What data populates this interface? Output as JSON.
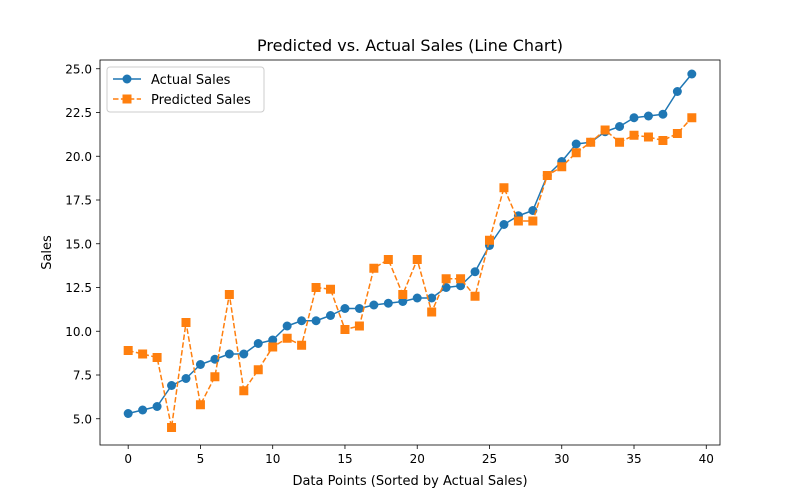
{
  "chart_data": {
    "type": "line",
    "title": "Predicted vs. Actual Sales (Line Chart)",
    "xlabel": "Data Points (Sorted by Actual Sales)",
    "ylabel": "Sales",
    "xlim": [
      -1.95,
      40.95
    ],
    "ylim": [
      3.5,
      25.5
    ],
    "xticks": [
      0,
      5,
      10,
      15,
      20,
      25,
      30,
      35,
      40
    ],
    "yticks": [
      5.0,
      7.5,
      10.0,
      12.5,
      15.0,
      17.5,
      20.0,
      22.5,
      25.0
    ],
    "ytick_labels": [
      "5.0",
      "7.5",
      "10.0",
      "12.5",
      "15.0",
      "17.5",
      "20.0",
      "22.5",
      "25.0"
    ],
    "grid": false,
    "legend_position": "upper-left",
    "x": [
      0,
      1,
      2,
      3,
      4,
      5,
      6,
      7,
      8,
      9,
      10,
      11,
      12,
      13,
      14,
      15,
      16,
      17,
      18,
      19,
      20,
      21,
      22,
      23,
      24,
      25,
      26,
      27,
      28,
      29,
      30,
      31,
      32,
      33,
      34,
      35,
      36,
      37,
      38,
      39
    ],
    "series": [
      {
        "name": "Actual Sales",
        "color": "#1f77b4",
        "marker": "circle",
        "linestyle": "solid",
        "values": [
          5.3,
          5.5,
          5.7,
          6.9,
          7.3,
          8.1,
          8.4,
          8.7,
          8.7,
          9.3,
          9.5,
          10.3,
          10.6,
          10.6,
          10.9,
          11.3,
          11.3,
          11.5,
          11.6,
          11.7,
          11.9,
          11.9,
          12.5,
          12.6,
          13.4,
          14.9,
          16.1,
          16.6,
          16.9,
          18.9,
          19.7,
          20.7,
          20.8,
          21.4,
          21.7,
          22.2,
          22.3,
          22.4,
          23.7,
          24.7
        ]
      },
      {
        "name": "Predicted Sales",
        "color": "#ff7f0e",
        "marker": "square",
        "linestyle": "dashed",
        "values": [
          8.9,
          8.7,
          8.5,
          4.5,
          10.5,
          5.8,
          7.4,
          12.1,
          6.6,
          7.8,
          9.1,
          9.6,
          9.2,
          12.5,
          12.4,
          10.1,
          10.3,
          13.6,
          14.1,
          12.1,
          14.1,
          11.1,
          13.0,
          13.0,
          12.0,
          15.2,
          18.2,
          16.3,
          16.3,
          18.9,
          19.4,
          20.2,
          20.8,
          21.5,
          20.8,
          21.2,
          21.1,
          20.9,
          21.3,
          22.2
        ]
      }
    ]
  }
}
